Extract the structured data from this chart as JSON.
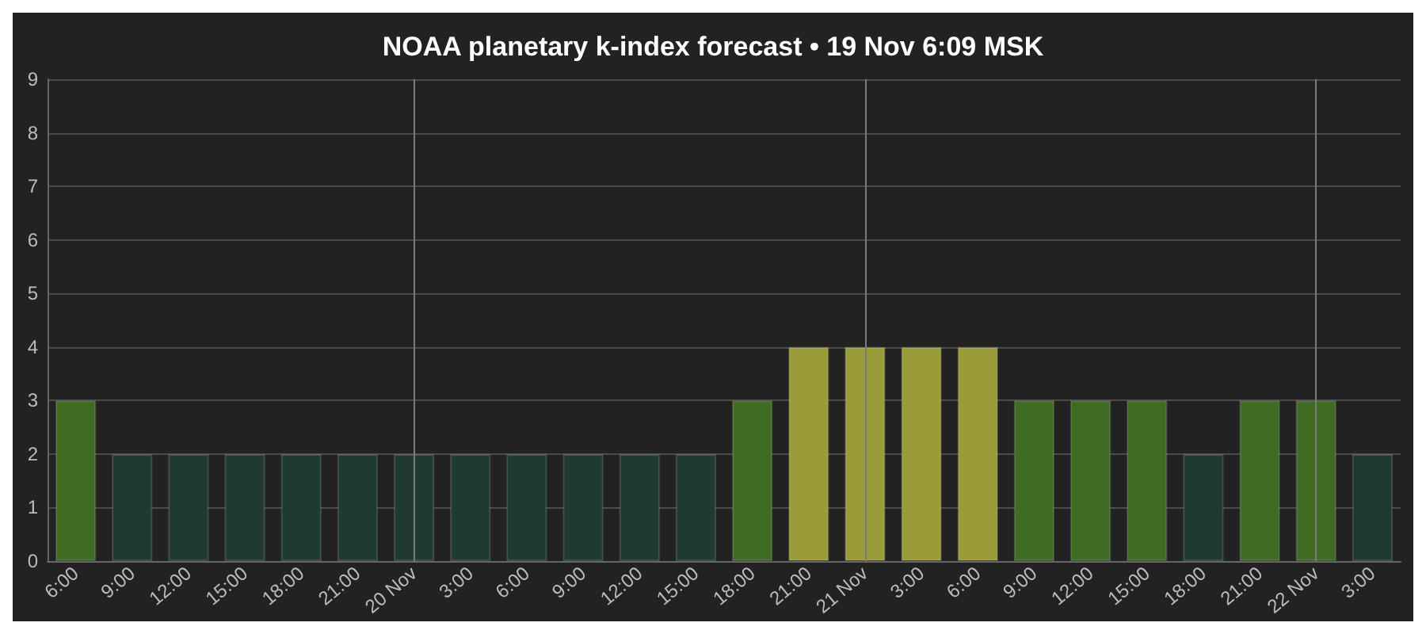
{
  "chart_data": {
    "type": "bar",
    "title": "NOAA planetary k-index forecast • 19 Nov 6:09 MSK",
    "categories": [
      "6:00",
      "9:00",
      "12:00",
      "15:00",
      "18:00",
      "21:00",
      "20 Nov",
      "3:00",
      "6:00",
      "9:00",
      "12:00",
      "15:00",
      "18:00",
      "21:00",
      "21 Nov",
      "3:00",
      "6:00",
      "9:00",
      "12:00",
      "15:00",
      "18:00",
      "21:00",
      "22 Nov",
      "3:00"
    ],
    "values": [
      3,
      2,
      2,
      2,
      2,
      2,
      2,
      2,
      2,
      2,
      2,
      2,
      3,
      4,
      4,
      4,
      4,
      3,
      3,
      3,
      2,
      3,
      3,
      2
    ],
    "colors": [
      "#3f6b23",
      "#1f3a33",
      "#1f3a33",
      "#1f3a33",
      "#1f3a33",
      "#1f3a33",
      "#1f3a33",
      "#1f3a33",
      "#1f3a33",
      "#1f3a33",
      "#1f3a33",
      "#1f3a33",
      "#3f6b23",
      "#9a9c38",
      "#9a9c38",
      "#9a9c38",
      "#9a9c38",
      "#3f6b23",
      "#3f6b23",
      "#3f6b23",
      "#1f3a33",
      "#3f6b23",
      "#3f6b23",
      "#1f3a33"
    ],
    "ylim": [
      0,
      9
    ],
    "yticks": [
      0,
      1,
      2,
      3,
      4,
      5,
      6,
      7,
      8,
      9
    ],
    "grid": "y",
    "ref_lines": [
      {
        "axis": "x",
        "value": "20 Nov",
        "color": "#7a7a7a"
      },
      {
        "axis": "x",
        "value": "21 Nov",
        "color": "#7a7a7a"
      },
      {
        "axis": "x",
        "value": "22 Nov",
        "color": "#7a7a7a"
      }
    ]
  }
}
